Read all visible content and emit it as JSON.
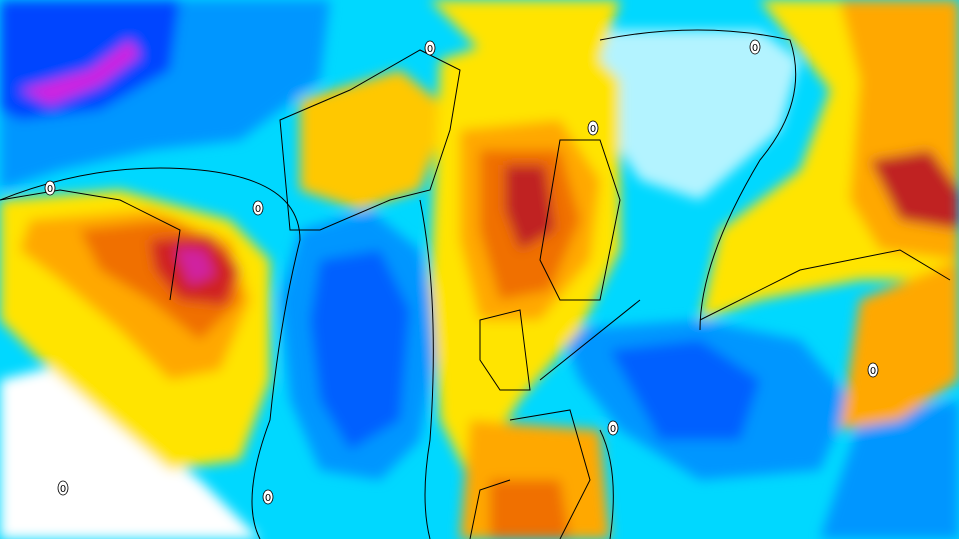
{
  "map": {
    "contour_labels": [
      "0",
      "0",
      "0",
      "0",
      "0",
      "0",
      "0",
      "0",
      "0"
    ]
  }
}
